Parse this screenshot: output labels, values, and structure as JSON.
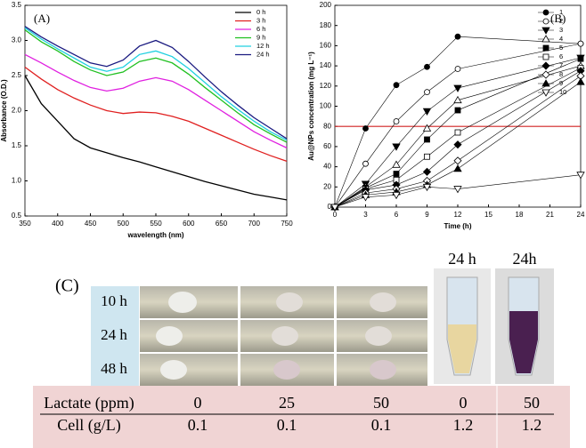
{
  "chart_data": [
    {
      "type": "line",
      "annotation": "(A)",
      "x_label": "wavelength (nm)",
      "y_label": "Absorbance (O.D.)",
      "x": [
        350,
        375,
        400,
        425,
        450,
        475,
        500,
        525,
        550,
        575,
        600,
        625,
        650,
        675,
        700,
        725,
        750
      ],
      "xlim": [
        350,
        750
      ],
      "xticks": [
        350,
        400,
        450,
        500,
        550,
        600,
        650,
        700,
        750
      ],
      "ylim": [
        0.5,
        3.5
      ],
      "yticks": [
        0.5,
        {
          "value": 1.0,
          "label": "1.0"
        },
        1.5,
        {
          "value": 2.0,
          "label": "2.0"
        },
        2.5,
        {
          "value": 3.0,
          "label": "3.0"
        },
        3.5
      ],
      "legend": "upper right",
      "series": [
        {
          "name": "0 h",
          "color": "#000000",
          "values": [
            2.5,
            2.1,
            1.85,
            1.6,
            1.47,
            1.4,
            1.33,
            1.27,
            1.2,
            1.13,
            1.06,
            0.99,
            0.93,
            0.87,
            0.81,
            0.77,
            0.73
          ]
        },
        {
          "name": "3 h",
          "color": "#e02020",
          "values": [
            2.62,
            2.45,
            2.3,
            2.18,
            2.08,
            2.0,
            1.96,
            1.98,
            1.97,
            1.92,
            1.85,
            1.75,
            1.65,
            1.55,
            1.45,
            1.36,
            1.28
          ]
        },
        {
          "name": "6 h",
          "color": "#e020e0",
          "values": [
            2.8,
            2.68,
            2.55,
            2.43,
            2.33,
            2.28,
            2.32,
            2.42,
            2.47,
            2.42,
            2.3,
            2.15,
            2.0,
            1.85,
            1.7,
            1.58,
            1.47
          ]
        },
        {
          "name": "9 h",
          "color": "#20c020",
          "values": [
            3.15,
            2.98,
            2.85,
            2.7,
            2.58,
            2.5,
            2.55,
            2.7,
            2.75,
            2.68,
            2.52,
            2.33,
            2.15,
            1.97,
            1.8,
            1.67,
            1.55
          ]
        },
        {
          "name": "12 h",
          "color": "#20d0e0",
          "values": [
            3.18,
            3.02,
            2.88,
            2.75,
            2.62,
            2.56,
            2.62,
            2.8,
            2.85,
            2.77,
            2.6,
            2.4,
            2.2,
            2.02,
            1.85,
            1.7,
            1.58
          ]
        },
        {
          "name": "24 h",
          "color": "#1a1a80",
          "values": [
            3.2,
            3.05,
            2.92,
            2.8,
            2.68,
            2.63,
            2.72,
            2.92,
            3.0,
            2.9,
            2.7,
            2.48,
            2.27,
            2.08,
            1.9,
            1.75,
            1.6
          ]
        }
      ]
    },
    {
      "type": "line-marker",
      "annotation": "(B)",
      "x_label": "Time (h)",
      "y_label": "Au@NPs concentration (mg L⁻¹)",
      "x": [
        0,
        3,
        6,
        9,
        12,
        24
      ],
      "xlim": [
        0,
        24
      ],
      "xticks": [
        0,
        3,
        6,
        9,
        12,
        15,
        18,
        21,
        24
      ],
      "ylim": [
        0,
        200
      ],
      "yticks": [
        0,
        20,
        40,
        60,
        80,
        100,
        120,
        140,
        160,
        180,
        200
      ],
      "legend": "upper right",
      "reference_line": {
        "value": 80,
        "color": "#d02020"
      },
      "series": [
        {
          "name": "1",
          "color": "#000000",
          "marker": "circle",
          "filled": true,
          "values": [
            0,
            78,
            121,
            139,
            169,
            162
          ]
        },
        {
          "name": "2",
          "color": "#000000",
          "marker": "circle",
          "filled": false,
          "values": [
            0,
            43,
            85,
            114,
            137,
            162
          ]
        },
        {
          "name": "3",
          "color": "#000000",
          "marker": "triangle-down",
          "filled": true,
          "values": [
            0,
            23,
            60,
            95,
            118,
            148
          ]
        },
        {
          "name": "4",
          "color": "#000000",
          "marker": "triangle-up",
          "filled": false,
          "values": [
            0,
            20,
            42,
            78,
            106,
            140
          ]
        },
        {
          "name": "5",
          "color": "#000000",
          "marker": "square",
          "filled": true,
          "values": [
            0,
            19,
            33,
            67,
            96,
            147
          ]
        },
        {
          "name": "6",
          "color": "#000000",
          "marker": "square",
          "filled": false,
          "values": [
            0,
            18,
            27,
            50,
            74,
            138
          ]
        },
        {
          "name": "7",
          "color": "#000000",
          "marker": "diamond",
          "filled": true,
          "values": [
            0,
            17,
            22,
            35,
            62,
            135
          ]
        },
        {
          "name": "8",
          "color": "#000000",
          "marker": "diamond",
          "filled": false,
          "values": [
            0,
            14,
            18,
            26,
            46,
            130
          ]
        },
        {
          "name": "9",
          "color": "#000000",
          "marker": "triangle-up",
          "filled": true,
          "values": [
            0,
            12,
            15,
            22,
            38,
            124
          ]
        },
        {
          "name": "10",
          "color": "#000000",
          "marker": "triangle-down",
          "filled": false,
          "values": [
            0,
            10,
            12,
            20,
            18,
            32
          ]
        }
      ]
    }
  ],
  "panel_c": {
    "label": "(C)",
    "rows": [
      "10 h",
      "24 h",
      "48 h"
    ],
    "tube_labels": [
      "24 h",
      "24h"
    ],
    "table": {
      "rows": [
        [
          "Lactate (ppm)",
          0,
          25,
          50,
          0,
          50
        ],
        [
          "Cell (g/L)",
          0.1,
          0.1,
          0.1,
          1.2,
          1.2
        ]
      ]
    }
  }
}
